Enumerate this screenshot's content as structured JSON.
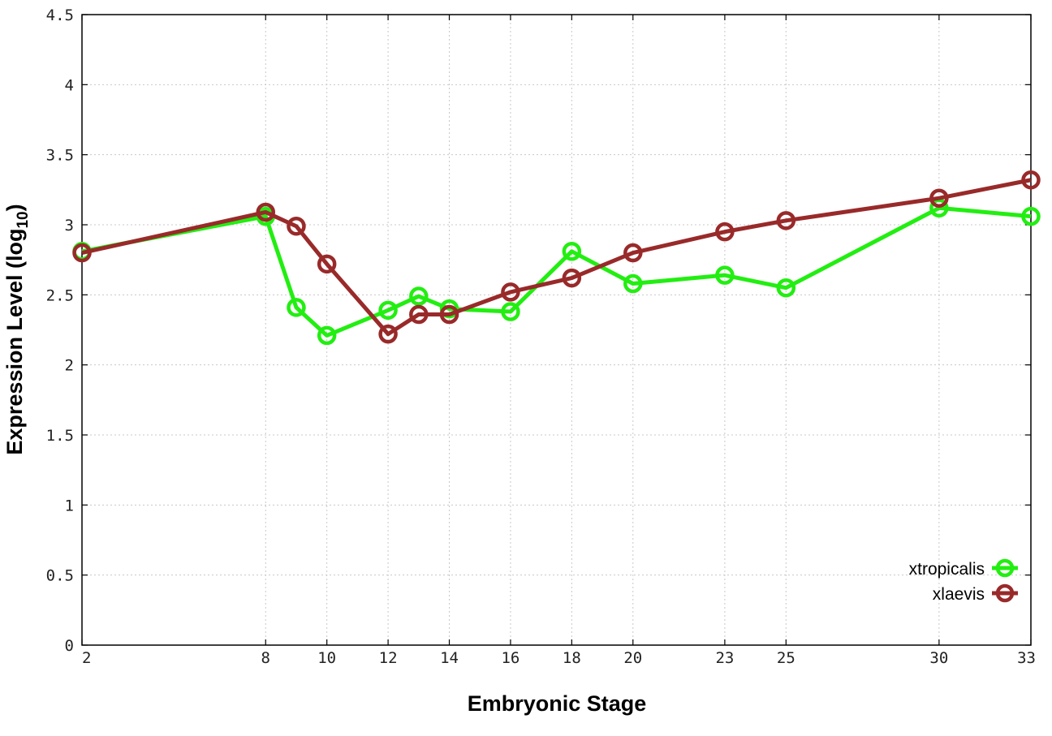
{
  "chart_data": {
    "type": "line",
    "xlabel": "Embryonic Stage",
    "ylabel_main": "Expression Level (log",
    "ylabel_sub": "10",
    "ylabel_close": ")",
    "x": [
      2,
      8,
      9,
      10,
      12,
      13,
      14,
      16,
      18,
      20,
      23,
      25,
      30,
      33
    ],
    "xticks": [
      2,
      8,
      10,
      12,
      14,
      16,
      18,
      20,
      23,
      25,
      30,
      33
    ],
    "xtick_labels": [
      "2",
      "8",
      "10",
      "12",
      "14",
      "16",
      "18",
      "20",
      "23",
      "25",
      "30",
      "33"
    ],
    "xlim": [
      2,
      33
    ],
    "ylim": [
      0,
      4.5
    ],
    "yticks": [
      0,
      0.5,
      1,
      1.5,
      2,
      2.5,
      3,
      3.5,
      4,
      4.5
    ],
    "ytick_labels": [
      "0",
      "0.5",
      "1",
      "1.5",
      "2",
      "2.5",
      "3",
      "3.5",
      "4",
      "4.5"
    ],
    "grid": true,
    "legend_position": "bottom-right",
    "series": [
      {
        "name": "xtropicalis",
        "color": "#22ee11",
        "marker": "open-circle",
        "values": [
          2.81,
          3.06,
          2.41,
          2.21,
          2.39,
          2.49,
          2.4,
          2.38,
          2.81,
          2.58,
          2.64,
          2.55,
          3.12,
          3.06
        ]
      },
      {
        "name": "xlaevis",
        "color": "#992a2a",
        "marker": "open-circle",
        "values": [
          2.8,
          3.09,
          2.99,
          2.72,
          2.22,
          2.36,
          2.36,
          2.52,
          2.62,
          2.8,
          2.95,
          3.03,
          3.19,
          3.32
        ]
      }
    ]
  }
}
